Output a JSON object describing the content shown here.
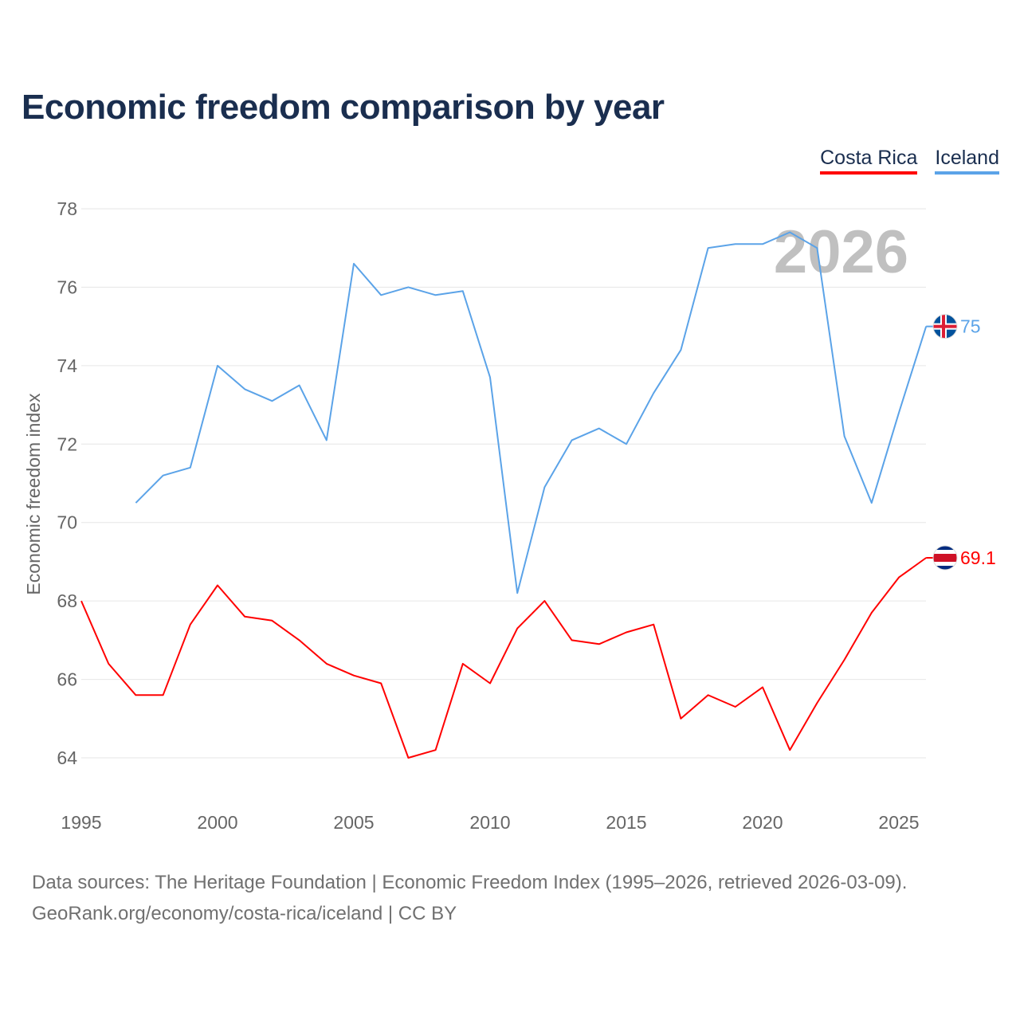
{
  "title": "Economic freedom comparison by year",
  "chart_data": {
    "type": "line",
    "title": "Economic freedom comparison by year",
    "xlabel": "",
    "ylabel": "Economic freedom index",
    "xlim": [
      1995,
      2026
    ],
    "ylim": [
      63,
      78.5
    ],
    "yticks": [
      64,
      66,
      68,
      70,
      72,
      74,
      76,
      78
    ],
    "xticks": [
      1995,
      2000,
      2005,
      2010,
      2015,
      2020,
      2025
    ],
    "grid": true,
    "legend_position": "top-right",
    "watermark_year": "2026",
    "series": [
      {
        "name": "Costa Rica",
        "color": "#ff0000",
        "end_label": "69.1",
        "x": [
          1995,
          1996,
          1997,
          1998,
          1999,
          2000,
          2001,
          2002,
          2003,
          2004,
          2005,
          2006,
          2007,
          2008,
          2009,
          2010,
          2011,
          2012,
          2013,
          2014,
          2015,
          2016,
          2017,
          2018,
          2019,
          2020,
          2021,
          2022,
          2023,
          2024,
          2025,
          2026
        ],
        "values": [
          68.0,
          66.4,
          65.6,
          65.6,
          67.4,
          68.4,
          67.6,
          67.5,
          67.0,
          66.4,
          66.1,
          65.9,
          64.0,
          64.2,
          66.4,
          65.9,
          67.3,
          68.0,
          67.0,
          66.9,
          67.2,
          67.4,
          65.0,
          65.6,
          65.3,
          65.8,
          64.2,
          65.4,
          66.5,
          67.7,
          68.6,
          69.1
        ]
      },
      {
        "name": "Iceland",
        "color": "#5ba3e8",
        "end_label": "75",
        "x": [
          1997,
          1998,
          1999,
          2000,
          2001,
          2002,
          2003,
          2004,
          2005,
          2006,
          2007,
          2008,
          2009,
          2010,
          2011,
          2012,
          2013,
          2014,
          2015,
          2016,
          2017,
          2018,
          2019,
          2020,
          2021,
          2022,
          2023,
          2024,
          2025,
          2026
        ],
        "values": [
          70.5,
          71.2,
          71.4,
          74.0,
          73.4,
          73.1,
          73.5,
          72.1,
          76.6,
          75.8,
          76.0,
          75.8,
          75.9,
          73.7,
          68.2,
          70.9,
          72.1,
          72.4,
          72.0,
          73.3,
          74.4,
          77.0,
          77.1,
          77.1,
          77.4,
          77.0,
          72.2,
          70.5,
          72.8,
          75.0
        ]
      }
    ]
  },
  "footer": {
    "line1": "Data sources: The Heritage Foundation | Economic Freedom Index (1995–2026, retrieved 2026-03-09).",
    "line2": "GeoRank.org/economy/costa-rica/iceland | CC BY"
  }
}
